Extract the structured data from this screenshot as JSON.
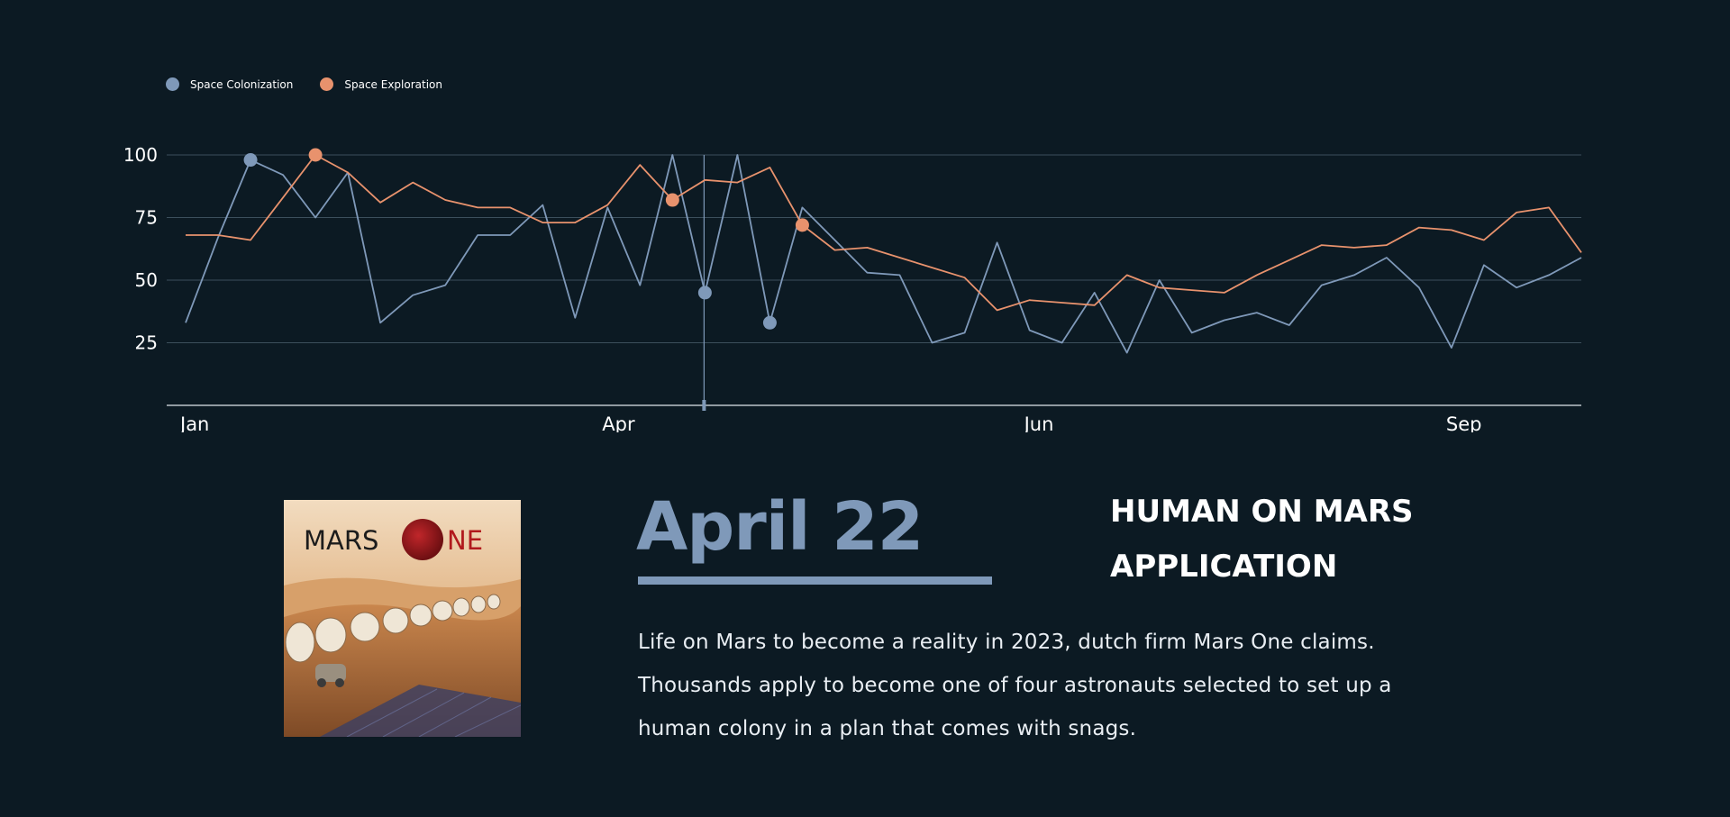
{
  "chart_data": {
    "type": "line",
    "legend_position": "top-left",
    "grid": true,
    "ylim": [
      0,
      100
    ],
    "yticks": [
      25,
      50,
      75,
      100
    ],
    "x_month_labels": [
      "Jan",
      "Apr",
      "Jun",
      "Sep"
    ],
    "x_month_label_index": [
      0,
      13,
      26,
      39
    ],
    "cursor_index": 16,
    "series": [
      {
        "name": "Space Colonization",
        "color": "#7f99b9",
        "highlight_index": [
          2,
          16,
          18
        ],
        "values": [
          33,
          67,
          98,
          92,
          75,
          93,
          33,
          44,
          48,
          68,
          68,
          80,
          35,
          79,
          48,
          100,
          45,
          100,
          33,
          79,
          66,
          53,
          52,
          25,
          29,
          65,
          30,
          25,
          45,
          21,
          50,
          29,
          34,
          37,
          32,
          48,
          52,
          59,
          47,
          23,
          56,
          47,
          52,
          59
        ]
      },
      {
        "name": "Space Exploration",
        "color": "#e8926d",
        "highlight_index": [
          4,
          15,
          19
        ],
        "values": [
          68,
          68,
          66,
          83,
          100,
          93,
          81,
          89,
          82,
          79,
          79,
          73,
          73,
          80,
          96,
          82,
          90,
          89,
          95,
          72,
          62,
          63,
          59,
          55,
          51,
          38,
          42,
          41,
          40,
          52,
          47,
          46,
          45,
          52,
          58,
          64,
          63,
          64,
          71,
          70,
          66,
          77,
          79,
          61
        ]
      }
    ]
  },
  "story": {
    "date": "April 22",
    "headline": "HUMAN ON MARS APPLICATION",
    "description": "Life on Mars to become a reality in 2023, dutch firm Mars One claims. Thousands apply to become one of four astronauts selected to set up a human colony in a plan that comes with snags.",
    "image_logo_text": "MARS ONE"
  },
  "colors": {
    "background": "#0c1a23",
    "accent": "#7f99b9",
    "secondary": "#e8926d"
  }
}
